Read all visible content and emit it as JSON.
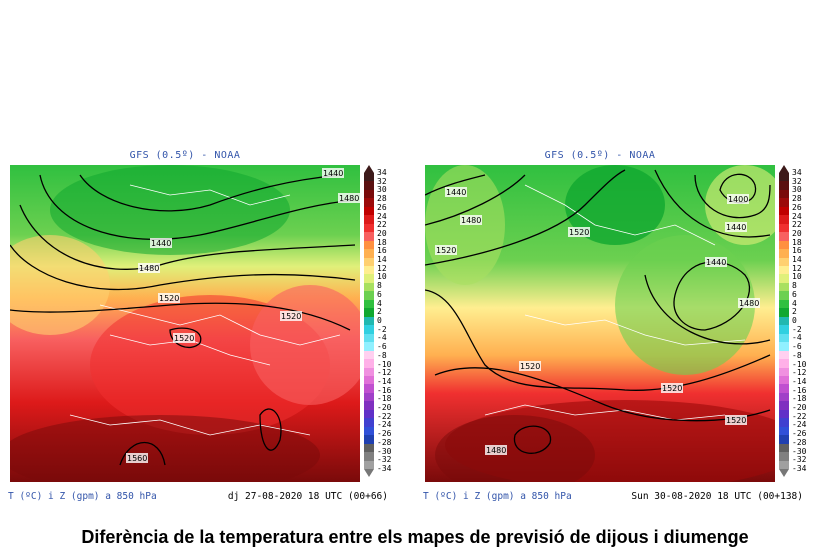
{
  "left_panel": {
    "header": "GFS (0.5º) - NOAA",
    "footer_left": "T (ºC) i Z (gpm) a 850 hPa",
    "footer_right": "dj 27-08-2020 18 UTC (00+66)",
    "contour_labels": [
      "1440",
      "1480",
      "1440",
      "1480",
      "1520",
      "1520",
      "1520",
      "1560"
    ]
  },
  "right_panel": {
    "header": "GFS (0.5º) - NOAA",
    "footer_left": "T (ºC) i Z (gpm) a 850 hPa",
    "footer_right": "Sun 30-08-2020 18 UTC (00+138)",
    "contour_labels": [
      "1440",
      "1480",
      "1520",
      "1400",
      "1440",
      "1440",
      "1480",
      "1520",
      "1520",
      "1520",
      "1520",
      "1480"
    ]
  },
  "legend": {
    "labels": [
      "34",
      "32",
      "30",
      "28",
      "26",
      "24",
      "22",
      "20",
      "18",
      "16",
      "14",
      "12",
      "10",
      "8",
      "6",
      "4",
      "2",
      "0",
      "-2",
      "-4",
      "-6",
      "-8",
      "-10",
      "-12",
      "-14",
      "-16",
      "-18",
      "-20",
      "-22",
      "-24",
      "-26",
      "-28",
      "-30",
      "-32",
      "-34"
    ],
    "colors": [
      "#3d1a1a",
      "#5a1010",
      "#7a0a0a",
      "#9c0a0a",
      "#c00000",
      "#dd1a1a",
      "#f03030",
      "#f86060",
      "#ff9040",
      "#ffb050",
      "#ffd070",
      "#ffee90",
      "#e0f07a",
      "#a8e060",
      "#6cd050",
      "#30c040",
      "#10a830",
      "#20b8b0",
      "#30d0e0",
      "#60e0f0",
      "#90f0ff",
      "#ffd0f0",
      "#ffb0e8",
      "#f090e0",
      "#e070d8",
      "#c050d0",
      "#a040c8",
      "#8030c0",
      "#6030c8",
      "#4040d0",
      "#3050d8",
      "#2040b0",
      "#606060",
      "#808080",
      "#a0a0a0"
    ]
  },
  "caption": "Diferència de la temperatura entre els mapes de previsió de dijous i diumenge"
}
